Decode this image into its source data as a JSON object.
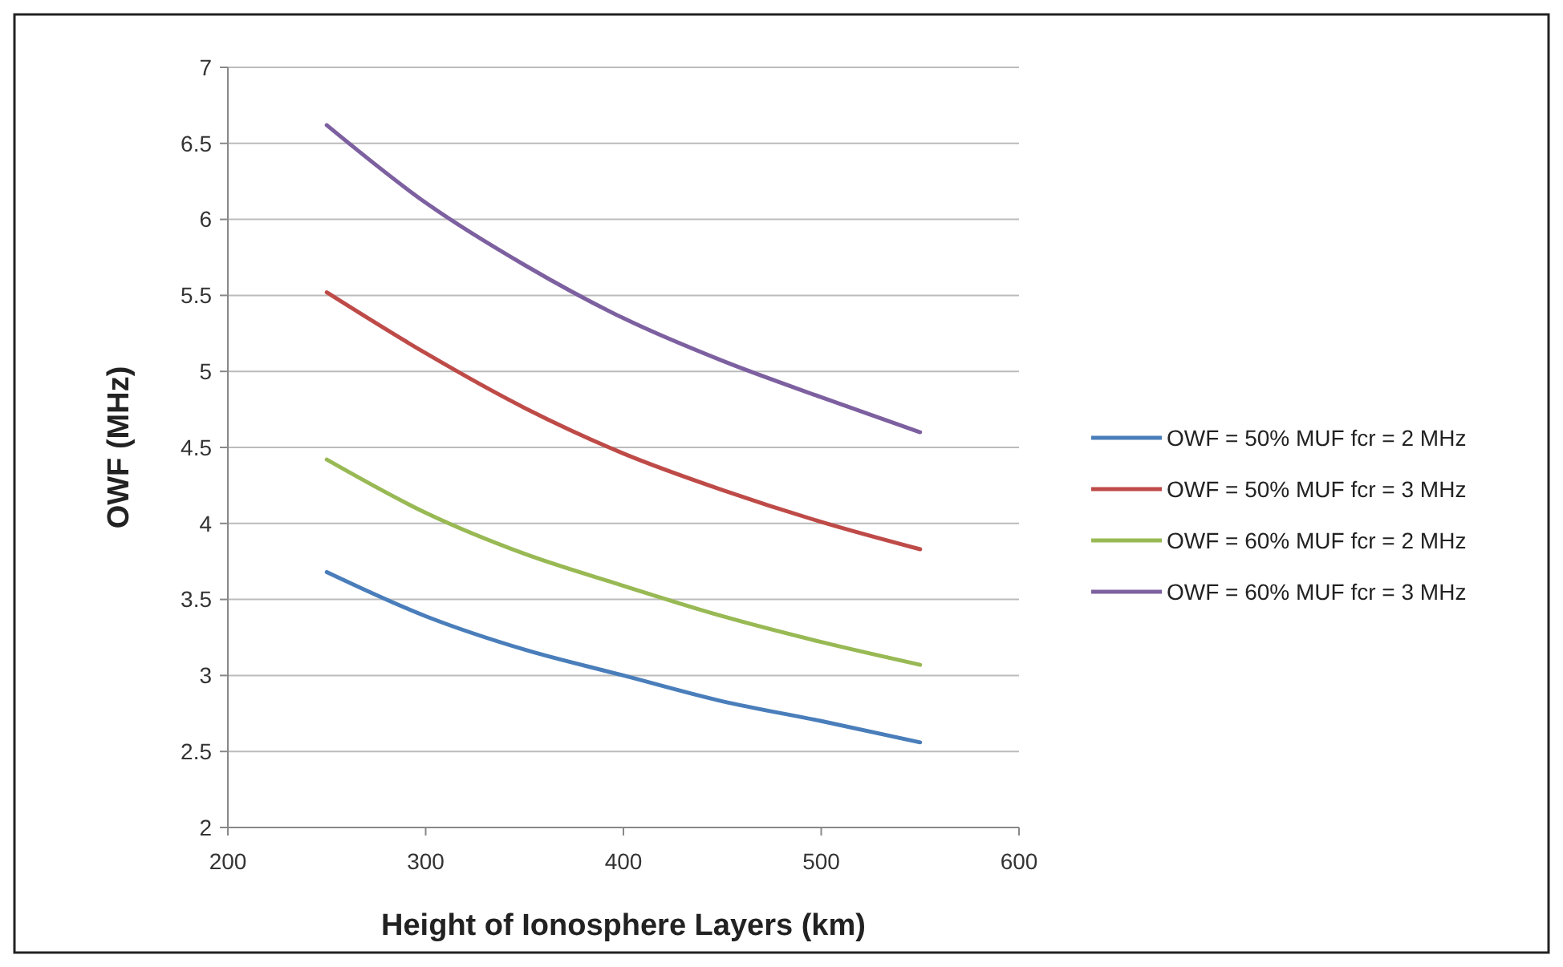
{
  "chart_data": {
    "type": "line",
    "xlabel": "Height of Ionosphere Layers (km)",
    "ylabel": "OWF (MHz)",
    "x": [
      250,
      300,
      350,
      400,
      450,
      500,
      550
    ],
    "series": [
      {
        "name": "OWF = 50% MUF fcr = 2 MHz",
        "color": "#4a7ebb",
        "values": [
          3.68,
          3.39,
          3.17,
          3.0,
          2.83,
          2.7,
          2.56
        ]
      },
      {
        "name": "OWF = 50% MUF fcr = 3 MHz",
        "color": "#be4b48",
        "values": [
          5.52,
          5.12,
          4.76,
          4.46,
          4.22,
          4.01,
          3.83
        ]
      },
      {
        "name": "OWF = 60% MUF fcr = 2 MHz",
        "color": "#98b954",
        "values": [
          4.42,
          4.07,
          3.8,
          3.59,
          3.39,
          3.22,
          3.07
        ]
      },
      {
        "name": "OWF = 60% MUF fcr = 3 MHz",
        "color": "#7d60a0",
        "values": [
          6.62,
          6.11,
          5.7,
          5.35,
          5.07,
          4.83,
          4.6
        ]
      }
    ],
    "xlim": [
      200,
      600
    ],
    "xticks": [
      200,
      300,
      400,
      500,
      600
    ],
    "ylim": [
      2,
      7
    ],
    "yticks": [
      2,
      {
        "value": 2.5,
        "label": "2.5"
      },
      3,
      {
        "value": 3.5,
        "label": "3.5"
      },
      4,
      {
        "value": 4.5,
        "label": "4.5"
      },
      5,
      {
        "value": 5.5,
        "label": "5.5"
      },
      6,
      {
        "value": 6.5,
        "label": "6.5"
      },
      7
    ],
    "grid": "y",
    "legend": "right",
    "marker": "none",
    "line_style": "solid"
  }
}
